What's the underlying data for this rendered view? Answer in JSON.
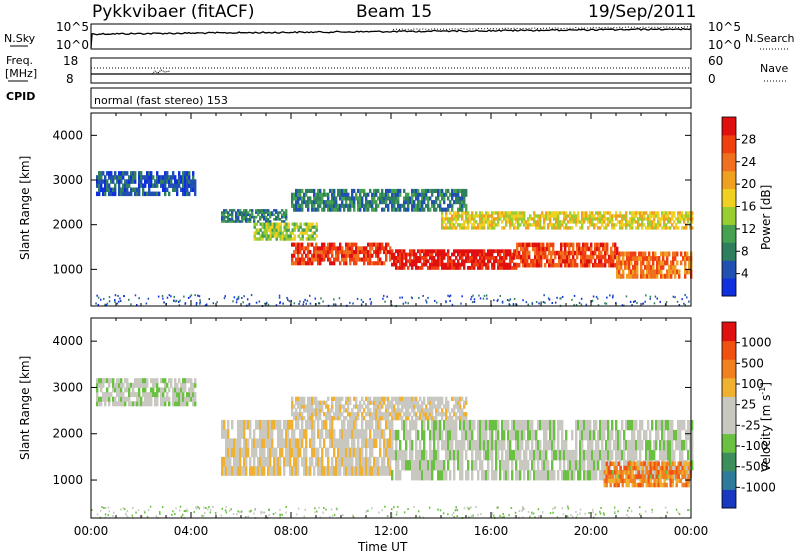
{
  "header": {
    "title": "Pykkvibaer (fitACF)",
    "beam": "Beam 15",
    "date": "19/Sep/2011"
  },
  "strip_nsky": {
    "left_label": "N.Sky",
    "left_ticks": [
      "10^5",
      "10^0"
    ],
    "right_ticks": [
      "10^5",
      "10^0"
    ],
    "right_label": "N.Search",
    "right_legend_style": "dotted"
  },
  "strip_freq": {
    "left_label_1": "Freq.",
    "left_label_2": "[MHz]",
    "left_ticks": [
      "18",
      "8"
    ],
    "right_ticks": [
      "60",
      "0"
    ],
    "right_label": "Nave",
    "right_legend_style": "dotted"
  },
  "cpid": {
    "label": "CPID",
    "value": "normal (fast stereo) 153"
  },
  "chart_data": [
    {
      "type": "heatmap",
      "name": "power",
      "ylabel": "Slant Range [km]",
      "xlabel": "Time UT",
      "x_ticks": [
        "00:00",
        "04:00",
        "08:00",
        "12:00",
        "16:00",
        "20:00",
        "00:00"
      ],
      "x_range_hours": [
        0,
        24
      ],
      "y_ticks": [
        1000,
        2000,
        3000,
        4000
      ],
      "ylim": [
        180,
        4500
      ],
      "colorbar": {
        "label": "Power [dB]",
        "ticks": [
          "28",
          "24",
          "20",
          "16",
          "12",
          "8",
          "4"
        ],
        "colors": [
          "#1030e0",
          "#2050b0",
          "#2f7f5e",
          "#45a050",
          "#9acd32",
          "#f0d020",
          "#f0a020",
          "#f07020",
          "#f04010",
          "#e01010"
        ]
      },
      "echo_bands": [
        {
          "t0": 0.2,
          "t1": 4.2,
          "r0": 2650,
          "r1": 3200,
          "level": 1
        },
        {
          "t0": 5.2,
          "t1": 7.8,
          "r0": 2050,
          "r1": 2350,
          "level": 2
        },
        {
          "t0": 6.5,
          "t1": 9.0,
          "r0": 1650,
          "r1": 2050,
          "level": 4
        },
        {
          "t0": 8.0,
          "t1": 12.0,
          "r0": 1100,
          "r1": 1600,
          "level": 8
        },
        {
          "t0": 12.0,
          "t1": 17.0,
          "r0": 1000,
          "r1": 1450,
          "level": 9
        },
        {
          "t0": 17.0,
          "t1": 21.0,
          "r0": 1050,
          "r1": 1600,
          "level": 8
        },
        {
          "t0": 14.0,
          "t1": 24.0,
          "r0": 1900,
          "r1": 2300,
          "level": 5
        },
        {
          "t0": 8.0,
          "t1": 15.0,
          "r0": 2300,
          "r1": 2800,
          "level": 2
        },
        {
          "t0": 21.0,
          "t1": 24.0,
          "r0": 800,
          "r1": 1400,
          "level": 7
        }
      ]
    },
    {
      "type": "heatmap",
      "name": "velocity",
      "ylabel": "Slant Range [km]",
      "xlabel": "Time UT",
      "x_ticks": [
        "00:00",
        "04:00",
        "08:00",
        "12:00",
        "16:00",
        "20:00",
        "00:00"
      ],
      "x_range_hours": [
        0,
        24
      ],
      "y_ticks": [
        1000,
        2000,
        3000,
        4000
      ],
      "ylim": [
        180,
        4500
      ],
      "colorbar": {
        "label_main": "Velocity [m s",
        "label_sup": "-1",
        "label_end": "]",
        "ticks": [
          "1000",
          "500",
          "100",
          "25",
          "-25",
          "-100",
          "-500",
          "-1000"
        ],
        "colors": [
          "#1838c0",
          "#2e7a9a",
          "#3c8f5a",
          "#6ac040",
          "#c8c8c0",
          "#c8c8c0",
          "#f0b030",
          "#f08020",
          "#f05010",
          "#e01010"
        ]
      },
      "echo_bands": [
        {
          "t0": 0.2,
          "t1": 4.2,
          "r0": 2600,
          "r1": 3200,
          "level": 4
        },
        {
          "t0": 5.2,
          "t1": 12.0,
          "r0": 1100,
          "r1": 2300,
          "level": 5
        },
        {
          "t0": 12.0,
          "t1": 24.0,
          "r0": 1000,
          "r1": 2300,
          "level": 4
        },
        {
          "t0": 8.0,
          "t1": 15.0,
          "r0": 2300,
          "r1": 2800,
          "level": 5
        },
        {
          "t0": 20.5,
          "t1": 24.0,
          "r0": 850,
          "r1": 1400,
          "level": 7
        }
      ]
    }
  ]
}
